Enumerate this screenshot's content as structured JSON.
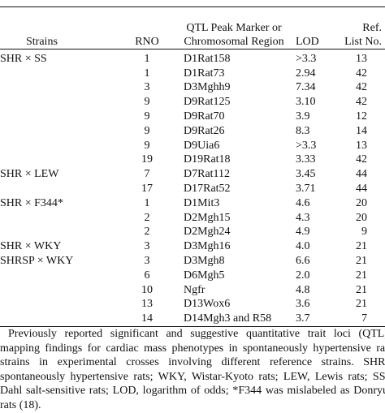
{
  "table": {
    "headers": {
      "strains": "Strains",
      "rno": "RNO",
      "marker": "QTL Peak Marker or Chromosomal Region",
      "lod": "LOD",
      "ref": "Ref. List No."
    },
    "rows": [
      {
        "strains": "SHR × SS",
        "rno": "1",
        "marker": "D1Rat158",
        "lod": ">3.3",
        "ref": "13"
      },
      {
        "strains": "",
        "rno": "1",
        "marker": "D1Rat73",
        "lod": "2.94",
        "ref": "42"
      },
      {
        "strains": "",
        "rno": "3",
        "marker": "D3Mghh9",
        "lod": "7.34",
        "ref": "42"
      },
      {
        "strains": "",
        "rno": "9",
        "marker": "D9Rat125",
        "lod": "3.10",
        "ref": "42"
      },
      {
        "strains": "",
        "rno": "9",
        "marker": "D9Rat70",
        "lod": "3.9",
        "ref": "12"
      },
      {
        "strains": "",
        "rno": "9",
        "marker": "D9Rat26",
        "lod": "8.3",
        "ref": "14"
      },
      {
        "strains": "",
        "rno": "9",
        "marker": "D9Uia6",
        "lod": ">3.3",
        "ref": "13"
      },
      {
        "strains": "",
        "rno": "19",
        "marker": "D19Rat18",
        "lod": "3.33",
        "ref": "42"
      },
      {
        "strains": "SHR × LEW",
        "rno": "7",
        "marker": "D7Rat112",
        "lod": "3.45",
        "ref": "44"
      },
      {
        "strains": "",
        "rno": "17",
        "marker": "D17Rat52",
        "lod": "3.71",
        "ref": "44"
      },
      {
        "strains": "SHR × F344*",
        "rno": "1",
        "marker": "D1Mit3",
        "lod": "4.6",
        "ref": "20"
      },
      {
        "strains": "",
        "rno": "2",
        "marker": "D2Mgh15",
        "lod": "4.3",
        "ref": "20"
      },
      {
        "strains": "",
        "rno": "2",
        "marker": "D2Mgh24",
        "lod": "4.9",
        "ref": "9"
      },
      {
        "strains": "SHR × WKY",
        "rno": "3",
        "marker": "D3Mgh16",
        "lod": "4.0",
        "ref": "21"
      },
      {
        "strains": "SHRSP × WKY",
        "rno": "3",
        "marker": "D3Mgh8",
        "lod": "6.6",
        "ref": "21"
      },
      {
        "strains": "",
        "rno": "6",
        "marker": "D6Mgh5",
        "lod": "2.0",
        "ref": "21"
      },
      {
        "strains": "",
        "rno": "10",
        "marker": "Ngfr",
        "lod": "4.8",
        "ref": "21"
      },
      {
        "strains": "",
        "rno": "13",
        "marker": "D13Wox6",
        "lod": "3.6",
        "ref": "21"
      },
      {
        "strains": "",
        "rno": "14",
        "marker": "D14Mgh3 and R58",
        "lod": "3.7",
        "ref": "7"
      }
    ]
  },
  "caption": "Previously reported significant and suggestive quantitative trait loci (QTL) mapping findings for cardiac mass phenotypes in spontaneously hypertensive rat strains in experimental crosses involving different reference strains. SHR, spontaneously hypertensive rats; WKY, Wistar-Kyoto rats; LEW, Lewis rats; SS, Dahl salt-sensitive rats; LOD, logarithm of odds; *F344 was mislabeled as Donryu rats (18)."
}
